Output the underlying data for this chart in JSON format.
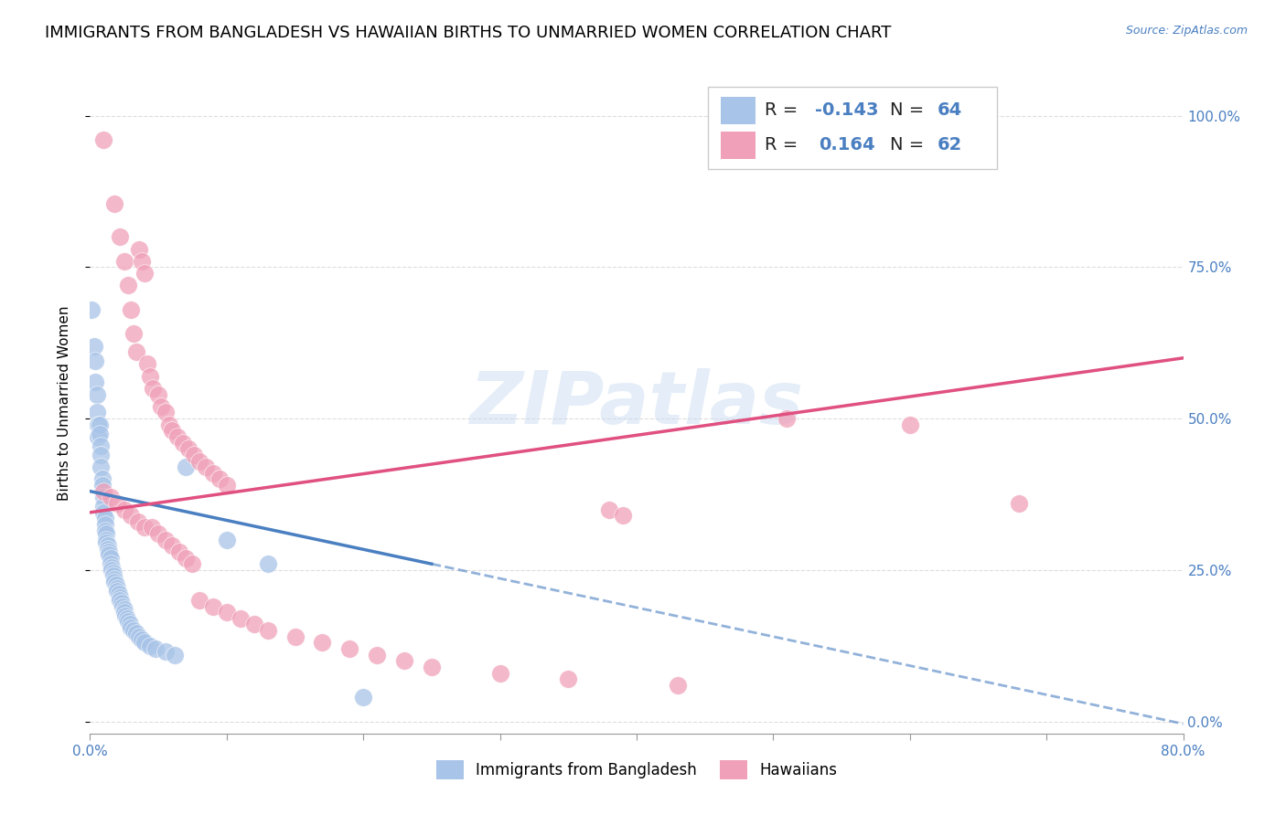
{
  "title": "IMMIGRANTS FROM BANGLADESH VS HAWAIIAN BIRTHS TO UNMARRIED WOMEN CORRELATION CHART",
  "source": "Source: ZipAtlas.com",
  "ylabel": "Births to Unmarried Women",
  "ylabel_right_ticks": [
    "0.0%",
    "25.0%",
    "50.0%",
    "75.0%",
    "100.0%"
  ],
  "legend_label_blue": "Immigrants from Bangladesh",
  "legend_label_pink": "Hawaiians",
  "blue_scatter_color": "#a8c4e8",
  "pink_scatter_color": "#f0a0b8",
  "blue_line_color": "#4a7fc1",
  "pink_line_color": "#e05080",
  "watermark": "ZIPatlas",
  "xlim": [
    0.0,
    0.8
  ],
  "ylim": [
    -0.02,
    1.07
  ],
  "grid_color": "#dddddd",
  "background_color": "#ffffff",
  "title_fontsize": 13,
  "axis_label_fontsize": 11,
  "tick_fontsize": 11,
  "blue_points": [
    [
      0.001,
      0.68
    ],
    [
      0.003,
      0.62
    ],
    [
      0.004,
      0.595
    ],
    [
      0.004,
      0.56
    ],
    [
      0.005,
      0.54
    ],
    [
      0.005,
      0.51
    ],
    [
      0.006,
      0.49
    ],
    [
      0.006,
      0.47
    ],
    [
      0.007,
      0.49
    ],
    [
      0.007,
      0.475
    ],
    [
      0.008,
      0.455
    ],
    [
      0.008,
      0.44
    ],
    [
      0.008,
      0.42
    ],
    [
      0.009,
      0.4
    ],
    [
      0.009,
      0.39
    ],
    [
      0.01,
      0.37
    ],
    [
      0.01,
      0.355
    ],
    [
      0.01,
      0.345
    ],
    [
      0.011,
      0.335
    ],
    [
      0.011,
      0.325
    ],
    [
      0.011,
      0.315
    ],
    [
      0.012,
      0.31
    ],
    [
      0.012,
      0.3
    ],
    [
      0.012,
      0.295
    ],
    [
      0.013,
      0.29
    ],
    [
      0.013,
      0.285
    ],
    [
      0.014,
      0.28
    ],
    [
      0.014,
      0.275
    ],
    [
      0.015,
      0.27
    ],
    [
      0.015,
      0.26
    ],
    [
      0.016,
      0.255
    ],
    [
      0.016,
      0.25
    ],
    [
      0.017,
      0.245
    ],
    [
      0.017,
      0.24
    ],
    [
      0.018,
      0.235
    ],
    [
      0.018,
      0.23
    ],
    [
      0.019,
      0.225
    ],
    [
      0.02,
      0.22
    ],
    [
      0.02,
      0.215
    ],
    [
      0.021,
      0.21
    ],
    [
      0.022,
      0.205
    ],
    [
      0.022,
      0.2
    ],
    [
      0.023,
      0.195
    ],
    [
      0.024,
      0.19
    ],
    [
      0.025,
      0.185
    ],
    [
      0.025,
      0.18
    ],
    [
      0.026,
      0.175
    ],
    [
      0.027,
      0.17
    ],
    [
      0.028,
      0.165
    ],
    [
      0.029,
      0.16
    ],
    [
      0.03,
      0.155
    ],
    [
      0.032,
      0.15
    ],
    [
      0.034,
      0.145
    ],
    [
      0.036,
      0.14
    ],
    [
      0.038,
      0.135
    ],
    [
      0.04,
      0.13
    ],
    [
      0.044,
      0.125
    ],
    [
      0.048,
      0.12
    ],
    [
      0.055,
      0.115
    ],
    [
      0.062,
      0.11
    ],
    [
      0.07,
      0.42
    ],
    [
      0.1,
      0.3
    ],
    [
      0.13,
      0.26
    ],
    [
      0.2,
      0.04
    ]
  ],
  "pink_points": [
    [
      0.01,
      0.96
    ],
    [
      0.018,
      0.855
    ],
    [
      0.022,
      0.8
    ],
    [
      0.025,
      0.76
    ],
    [
      0.028,
      0.72
    ],
    [
      0.03,
      0.68
    ],
    [
      0.032,
      0.64
    ],
    [
      0.034,
      0.61
    ],
    [
      0.036,
      0.78
    ],
    [
      0.038,
      0.76
    ],
    [
      0.04,
      0.74
    ],
    [
      0.042,
      0.59
    ],
    [
      0.044,
      0.57
    ],
    [
      0.046,
      0.55
    ],
    [
      0.05,
      0.54
    ],
    [
      0.052,
      0.52
    ],
    [
      0.055,
      0.51
    ],
    [
      0.058,
      0.49
    ],
    [
      0.06,
      0.48
    ],
    [
      0.064,
      0.47
    ],
    [
      0.068,
      0.46
    ],
    [
      0.072,
      0.45
    ],
    [
      0.076,
      0.44
    ],
    [
      0.08,
      0.43
    ],
    [
      0.085,
      0.42
    ],
    [
      0.09,
      0.41
    ],
    [
      0.095,
      0.4
    ],
    [
      0.1,
      0.39
    ],
    [
      0.01,
      0.38
    ],
    [
      0.015,
      0.37
    ],
    [
      0.02,
      0.36
    ],
    [
      0.025,
      0.35
    ],
    [
      0.03,
      0.34
    ],
    [
      0.035,
      0.33
    ],
    [
      0.04,
      0.32
    ],
    [
      0.045,
      0.32
    ],
    [
      0.05,
      0.31
    ],
    [
      0.055,
      0.3
    ],
    [
      0.06,
      0.29
    ],
    [
      0.065,
      0.28
    ],
    [
      0.07,
      0.27
    ],
    [
      0.075,
      0.26
    ],
    [
      0.08,
      0.2
    ],
    [
      0.09,
      0.19
    ],
    [
      0.1,
      0.18
    ],
    [
      0.11,
      0.17
    ],
    [
      0.12,
      0.16
    ],
    [
      0.13,
      0.15
    ],
    [
      0.15,
      0.14
    ],
    [
      0.17,
      0.13
    ],
    [
      0.19,
      0.12
    ],
    [
      0.21,
      0.11
    ],
    [
      0.23,
      0.1
    ],
    [
      0.25,
      0.09
    ],
    [
      0.3,
      0.08
    ],
    [
      0.35,
      0.07
    ],
    [
      0.38,
      0.35
    ],
    [
      0.39,
      0.34
    ],
    [
      0.43,
      0.06
    ],
    [
      0.51,
      0.5
    ],
    [
      0.6,
      0.49
    ],
    [
      0.68,
      0.36
    ]
  ],
  "blue_line": {
    "x0": 0.0,
    "y0": 0.38,
    "x1": 0.25,
    "y1": 0.26
  },
  "pink_line": {
    "x0": 0.0,
    "y0": 0.345,
    "x1": 0.8,
    "y1": 0.6
  }
}
